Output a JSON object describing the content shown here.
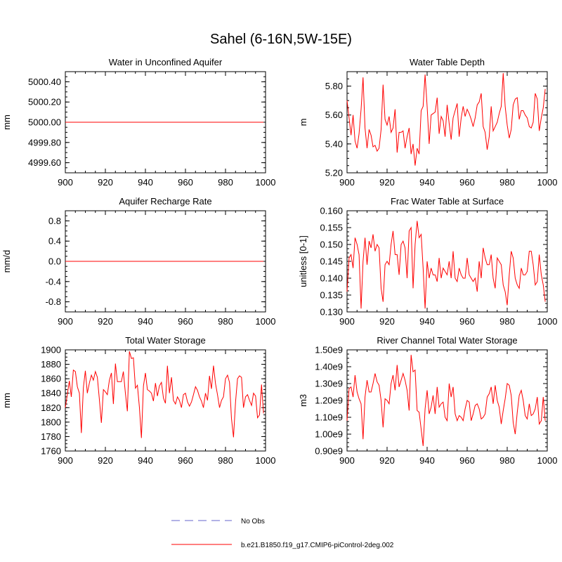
{
  "title": "Sahel (6-16N,5W-15E)",
  "colors": {
    "model": "#ff0000",
    "obs": "#9999dd",
    "axis": "#000000"
  },
  "legend": {
    "obs_label": "No Obs",
    "model_label": "b.e21.B1850.f19_g17.CMIP6-piControl-2deg.002"
  },
  "chart_data": [
    {
      "type": "line",
      "title": "Water in Unconfined Aquifer",
      "ylabel": "mm",
      "xlabel": "",
      "xlim": [
        900,
        1000
      ],
      "ylim": [
        4999.5,
        5000.5
      ],
      "xticks": [
        900,
        920,
        940,
        960,
        980,
        1000
      ],
      "xtick_labels": [
        "900",
        "920",
        "940",
        "960",
        "980",
        "1000"
      ],
      "yticks": [
        4999.6,
        4999.8,
        5000.0,
        5000.2,
        5000.4
      ],
      "ytick_labels": [
        "4999.60",
        "4999.80",
        "5000.00",
        "5000.20",
        "5000.40"
      ],
      "x_start": 900,
      "x_step": 1,
      "values": [
        5000,
        5000,
        5000,
        5000,
        5000,
        5000,
        5000,
        5000,
        5000,
        5000,
        5000,
        5000,
        5000,
        5000,
        5000,
        5000,
        5000,
        5000,
        5000,
        5000,
        5000,
        5000,
        5000,
        5000,
        5000,
        5000,
        5000,
        5000,
        5000,
        5000,
        5000,
        5000,
        5000,
        5000,
        5000,
        5000,
        5000,
        5000,
        5000,
        5000,
        5000,
        5000,
        5000,
        5000,
        5000,
        5000,
        5000,
        5000,
        5000,
        5000,
        5000,
        5000,
        5000,
        5000,
        5000,
        5000,
        5000,
        5000,
        5000,
        5000,
        5000,
        5000,
        5000,
        5000,
        5000,
        5000,
        5000,
        5000,
        5000,
        5000,
        5000,
        5000,
        5000,
        5000,
        5000,
        5000,
        5000,
        5000,
        5000,
        5000,
        5000,
        5000,
        5000,
        5000,
        5000,
        5000,
        5000,
        5000,
        5000,
        5000,
        5000,
        5000,
        5000,
        5000,
        5000,
        5000,
        5000,
        5000,
        5000,
        5000
      ]
    },
    {
      "type": "line",
      "title": "Water Table Depth",
      "ylabel": "m",
      "xlabel": "",
      "xlim": [
        900,
        1000
      ],
      "ylim": [
        5.2,
        5.9
      ],
      "xticks": [
        900,
        920,
        940,
        960,
        980,
        1000
      ],
      "xtick_labels": [
        "900",
        "920",
        "940",
        "960",
        "980",
        "1000"
      ],
      "yticks": [
        5.2,
        5.4,
        5.6,
        5.8
      ],
      "ytick_labels": [
        "5.20",
        "5.40",
        "5.60",
        "5.80"
      ],
      "x_start": 900,
      "x_step": 1,
      "values": [
        5.7,
        5.58,
        5.46,
        5.6,
        5.42,
        5.37,
        5.47,
        5.64,
        5.86,
        5.51,
        5.37,
        5.5,
        5.46,
        5.38,
        5.39,
        5.35,
        5.37,
        5.5,
        5.81,
        5.57,
        5.53,
        5.59,
        5.48,
        5.51,
        5.64,
        5.34,
        5.48,
        5.48,
        5.49,
        5.37,
        5.45,
        5.51,
        5.33,
        5.4,
        5.25,
        5.37,
        5.33,
        5.63,
        5.66,
        5.88,
        5.66,
        5.4,
        5.6,
        5.61,
        5.62,
        5.72,
        5.47,
        5.59,
        5.56,
        5.45,
        5.67,
        5.54,
        5.43,
        5.58,
        5.63,
        5.68,
        5.45,
        5.58,
        5.66,
        5.59,
        5.64,
        5.61,
        5.57,
        5.52,
        5.58,
        5.67,
        5.69,
        5.75,
        5.52,
        5.48,
        5.36,
        5.45,
        5.66,
        5.49,
        5.52,
        5.55,
        5.61,
        5.66,
        5.89,
        5.66,
        5.53,
        5.44,
        5.5,
        5.67,
        5.71,
        5.72,
        5.57,
        5.63,
        5.63,
        5.6,
        5.58,
        5.52,
        5.51,
        5.55,
        5.75,
        5.71,
        5.49,
        5.58,
        5.65,
        5.78
      ]
    },
    {
      "type": "line",
      "title": "Aquifer Recharge Rate",
      "ylabel": "mm/d",
      "xlabel": "",
      "xlim": [
        900,
        1000
      ],
      "ylim": [
        -1.0,
        1.0
      ],
      "xticks": [
        900,
        920,
        940,
        960,
        980,
        1000
      ],
      "xtick_labels": [
        "900",
        "920",
        "940",
        "960",
        "980",
        "1000"
      ],
      "yticks": [
        -0.8,
        -0.4,
        0.0,
        0.4,
        0.8
      ],
      "ytick_labels": [
        "-0.8",
        "-0.4",
        "0.0",
        "0.4",
        "0.8"
      ],
      "x_start": 900,
      "x_step": 1,
      "values": [
        0,
        0,
        0,
        0,
        0,
        0,
        0,
        0,
        0,
        0,
        0,
        0,
        0,
        0,
        0,
        0,
        0,
        0,
        0,
        0,
        0,
        0,
        0,
        0,
        0,
        0,
        0,
        0,
        0,
        0,
        0,
        0,
        0,
        0,
        0,
        0,
        0,
        0,
        0,
        0,
        0,
        0,
        0,
        0,
        0,
        0,
        0,
        0,
        0,
        0,
        0,
        0,
        0,
        0,
        0,
        0,
        0,
        0,
        0,
        0,
        0,
        0,
        0,
        0,
        0,
        0,
        0,
        0,
        0,
        0,
        0,
        0,
        0,
        0,
        0,
        0,
        0,
        0,
        0,
        0,
        0,
        0,
        0,
        0,
        0,
        0,
        0,
        0,
        0,
        0,
        0,
        0,
        0,
        0,
        0,
        0,
        0,
        0,
        0,
        0
      ]
    },
    {
      "type": "line",
      "title": "Frac Water Table at Surface",
      "ylabel": "unitless [0-1]",
      "xlabel": "",
      "xlim": [
        900,
        1000
      ],
      "ylim": [
        0.13,
        0.16
      ],
      "xticks": [
        900,
        920,
        940,
        960,
        980,
        1000
      ],
      "xtick_labels": [
        "900",
        "920",
        "940",
        "960",
        "980",
        "1000"
      ],
      "yticks": [
        0.13,
        0.135,
        0.14,
        0.145,
        0.15,
        0.155,
        0.16
      ],
      "ytick_labels": [
        "0.130",
        "0.135",
        "0.140",
        "0.145",
        "0.150",
        "0.155",
        "0.160"
      ],
      "x_start": 900,
      "x_step": 1,
      "values": [
        0.136,
        0.146,
        0.147,
        0.143,
        0.152,
        0.15,
        0.147,
        0.131,
        0.145,
        0.152,
        0.144,
        0.151,
        0.149,
        0.153,
        0.148,
        0.15,
        0.149,
        0.137,
        0.133,
        0.144,
        0.145,
        0.144,
        0.15,
        0.154,
        0.147,
        0.147,
        0.141,
        0.15,
        0.151,
        0.149,
        0.14,
        0.154,
        0.155,
        0.137,
        0.15,
        0.157,
        0.152,
        0.153,
        0.143,
        0.131,
        0.145,
        0.14,
        0.143,
        0.141,
        0.141,
        0.139,
        0.146,
        0.14,
        0.143,
        0.142,
        0.141,
        0.145,
        0.14,
        0.148,
        0.14,
        0.139,
        0.143,
        0.141,
        0.14,
        0.14,
        0.146,
        0.141,
        0.14,
        0.139,
        0.14,
        0.136,
        0.145,
        0.14,
        0.149,
        0.146,
        0.144,
        0.144,
        0.147,
        0.14,
        0.137,
        0.146,
        0.145,
        0.144,
        0.138,
        0.136,
        0.132,
        0.141,
        0.148,
        0.146,
        0.14,
        0.138,
        0.137,
        0.143,
        0.141,
        0.141,
        0.142,
        0.148,
        0.148,
        0.144,
        0.138,
        0.139,
        0.147,
        0.141,
        0.138,
        0.133
      ]
    },
    {
      "type": "line",
      "title": "Total Water Storage",
      "ylabel": "mm",
      "xlabel": "",
      "xlim": [
        900,
        1000
      ],
      "ylim": [
        1760,
        1900
      ],
      "xticks": [
        900,
        920,
        940,
        960,
        980,
        1000
      ],
      "xtick_labels": [
        "900",
        "920",
        "940",
        "960",
        "980",
        "1000"
      ],
      "yticks": [
        1760,
        1780,
        1800,
        1820,
        1840,
        1860,
        1880,
        1900
      ],
      "ytick_labels": [
        "1760",
        "1780",
        "1800",
        "1820",
        "1840",
        "1860",
        "1880",
        "1900"
      ],
      "x_start": 900,
      "x_step": 1,
      "values": [
        1820,
        1838,
        1857,
        1835,
        1872,
        1870,
        1849,
        1840,
        1785,
        1848,
        1871,
        1840,
        1854,
        1865,
        1858,
        1870,
        1862,
        1832,
        1799,
        1845,
        1842,
        1838,
        1858,
        1868,
        1825,
        1881,
        1856,
        1856,
        1856,
        1870,
        1840,
        1815,
        1898,
        1888,
        1889,
        1847,
        1851,
        1821,
        1778,
        1850,
        1868,
        1845,
        1843,
        1840,
        1829,
        1854,
        1836,
        1850,
        1855,
        1833,
        1826,
        1878,
        1840,
        1862,
        1830,
        1825,
        1835,
        1830,
        1820,
        1838,
        1840,
        1828,
        1822,
        1828,
        1838,
        1849,
        1844,
        1835,
        1829,
        1820,
        1840,
        1830,
        1864,
        1846,
        1878,
        1853,
        1838,
        1820,
        1830,
        1835,
        1860,
        1865,
        1855,
        1805,
        1779,
        1828,
        1860,
        1864,
        1862,
        1820,
        1835,
        1838,
        1830,
        1823,
        1840,
        1836,
        1806,
        1810,
        1852,
        1812
      ]
    },
    {
      "type": "line",
      "title": "River Channel Total Water Storage",
      "ylabel": "m3",
      "xlabel": "",
      "xlim": [
        900,
        1000
      ],
      "ylim": [
        0.9,
        1.5
      ],
      "xticks": [
        900,
        920,
        940,
        960,
        980,
        1000
      ],
      "xtick_labels": [
        "900",
        "920",
        "940",
        "960",
        "980",
        "1000"
      ],
      "yticks": [
        0.9,
        1.0,
        1.1,
        1.2,
        1.3,
        1.4,
        1.5
      ],
      "ytick_labels": [
        "0.90e9",
        "1.00e9",
        "1.10e9",
        "1.20e9",
        "1.30e9",
        "1.40e9",
        "1.50e9"
      ],
      "x_start": 900,
      "x_step": 1,
      "values": [
        1.08,
        1.27,
        1.28,
        1.22,
        1.35,
        1.25,
        1.21,
        1.18,
        0.97,
        1.22,
        1.32,
        1.25,
        1.25,
        1.3,
        1.36,
        1.31,
        1.29,
        1.2,
        1.04,
        1.21,
        1.2,
        1.18,
        1.3,
        1.35,
        1.26,
        1.41,
        1.28,
        1.32,
        1.36,
        1.32,
        1.26,
        1.14,
        1.47,
        1.37,
        1.38,
        1.14,
        1.13,
        1.03,
        0.93,
        1.15,
        1.26,
        1.12,
        1.16,
        1.23,
        1.12,
        1.28,
        1.16,
        1.18,
        1.19,
        1.1,
        1.08,
        1.3,
        1.22,
        1.28,
        1.12,
        1.08,
        1.11,
        1.1,
        1.08,
        1.15,
        1.2,
        1.19,
        1.08,
        1.12,
        1.17,
        1.18,
        1.15,
        1.09,
        1.1,
        1.12,
        1.22,
        1.24,
        1.28,
        1.18,
        1.29,
        1.2,
        1.16,
        1.06,
        1.14,
        1.21,
        1.3,
        1.29,
        1.23,
        1.07,
        1.0,
        1.13,
        1.23,
        1.26,
        1.2,
        1.11,
        1.09,
        1.18,
        1.11,
        1.12,
        1.15,
        1.22,
        1.06,
        1.08,
        1.22,
        1.08
      ]
    }
  ]
}
